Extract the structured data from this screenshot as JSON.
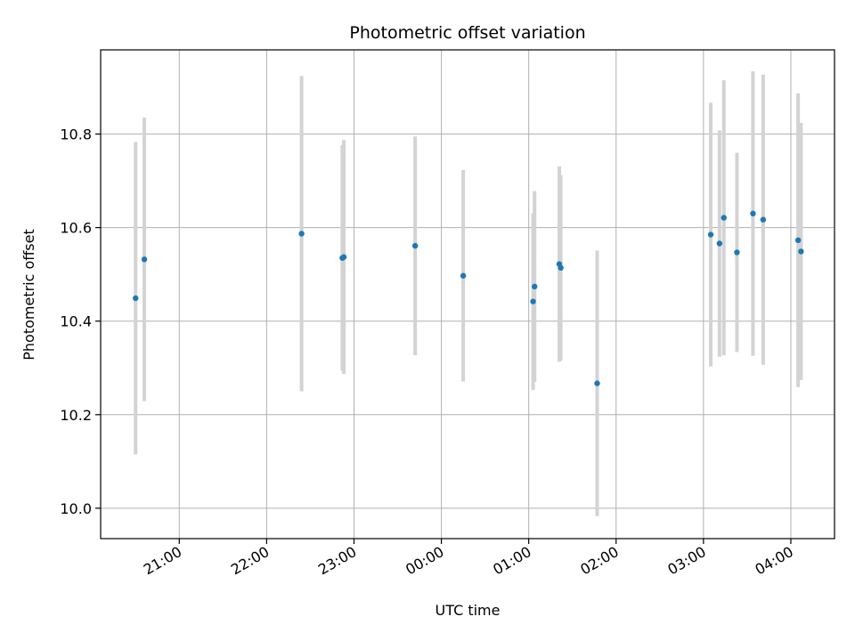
{
  "chart_data": {
    "type": "scatter",
    "title": "Photometric offset variation",
    "xlabel": "UTC time",
    "ylabel": "Photometric offset",
    "xlim": [
      "2000-01-01T20:06:00",
      "2000-01-02T04:30:00"
    ],
    "ylim": [
      9.935,
      10.98
    ],
    "x_ticks": [
      {
        "t": "2000-01-01T21:00:00",
        "label": "21:00"
      },
      {
        "t": "2000-01-01T22:00:00",
        "label": "22:00"
      },
      {
        "t": "2000-01-01T23:00:00",
        "label": "23:00"
      },
      {
        "t": "2000-01-02T00:00:00",
        "label": "00:00"
      },
      {
        "t": "2000-01-02T01:00:00",
        "label": "01:00"
      },
      {
        "t": "2000-01-02T02:00:00",
        "label": "02:00"
      },
      {
        "t": "2000-01-02T03:00:00",
        "label": "03:00"
      },
      {
        "t": "2000-01-02T04:00:00",
        "label": "04:00"
      }
    ],
    "y_ticks": [
      {
        "v": 10.0,
        "label": "10.0"
      },
      {
        "v": 10.2,
        "label": "10.2"
      },
      {
        "v": 10.4,
        "label": "10.4"
      },
      {
        "v": 10.6,
        "label": "10.6"
      },
      {
        "v": 10.8,
        "label": "10.8"
      }
    ],
    "grid": true,
    "marker_color": "#1f77b4",
    "errorbar_color": "#d3d3d3",
    "points": [
      {
        "t": "2000-01-01T20:30:00",
        "y": 10.449,
        "lo": 10.115,
        "hi": 10.783
      },
      {
        "t": "2000-01-01T20:36:00",
        "y": 10.532,
        "lo": 10.229,
        "hi": 10.835
      },
      {
        "t": "2000-01-01T22:24:00",
        "y": 10.587,
        "lo": 10.25,
        "hi": 10.924
      },
      {
        "t": "2000-01-01T22:52:00",
        "y": 10.535,
        "lo": 10.294,
        "hi": 10.776
      },
      {
        "t": "2000-01-01T22:53:00",
        "y": 10.537,
        "lo": 10.287,
        "hi": 10.787
      },
      {
        "t": "2000-01-01T23:42:00",
        "y": 10.561,
        "lo": 10.327,
        "hi": 10.795
      },
      {
        "t": "2000-01-02T00:15:00",
        "y": 10.497,
        "lo": 10.271,
        "hi": 10.723
      },
      {
        "t": "2000-01-02T01:03:00",
        "y": 10.442,
        "lo": 10.253,
        "hi": 10.631
      },
      {
        "t": "2000-01-02T01:04:00",
        "y": 10.474,
        "lo": 10.27,
        "hi": 10.678
      },
      {
        "t": "2000-01-02T01:21:00",
        "y": 10.522,
        "lo": 10.313,
        "hi": 10.731
      },
      {
        "t": "2000-01-02T01:22:00",
        "y": 10.514,
        "lo": 10.316,
        "hi": 10.712
      },
      {
        "t": "2000-01-02T01:47:00",
        "y": 10.267,
        "lo": 9.983,
        "hi": 10.551
      },
      {
        "t": "2000-01-02T03:05:00",
        "y": 10.585,
        "lo": 10.303,
        "hi": 10.867
      },
      {
        "t": "2000-01-02T03:11:00",
        "y": 10.566,
        "lo": 10.324,
        "hi": 10.808
      },
      {
        "t": "2000-01-02T03:14:00",
        "y": 10.621,
        "lo": 10.327,
        "hi": 10.915
      },
      {
        "t": "2000-01-02T03:23:00",
        "y": 10.547,
        "lo": 10.334,
        "hi": 10.76
      },
      {
        "t": "2000-01-02T03:34:00",
        "y": 10.63,
        "lo": 10.326,
        "hi": 10.934
      },
      {
        "t": "2000-01-02T03:41:00",
        "y": 10.617,
        "lo": 10.307,
        "hi": 10.927
      },
      {
        "t": "2000-01-02T04:05:00",
        "y": 10.573,
        "lo": 10.259,
        "hi": 10.887
      },
      {
        "t": "2000-01-02T04:07:00",
        "y": 10.549,
        "lo": 10.274,
        "hi": 10.824
      }
    ]
  }
}
